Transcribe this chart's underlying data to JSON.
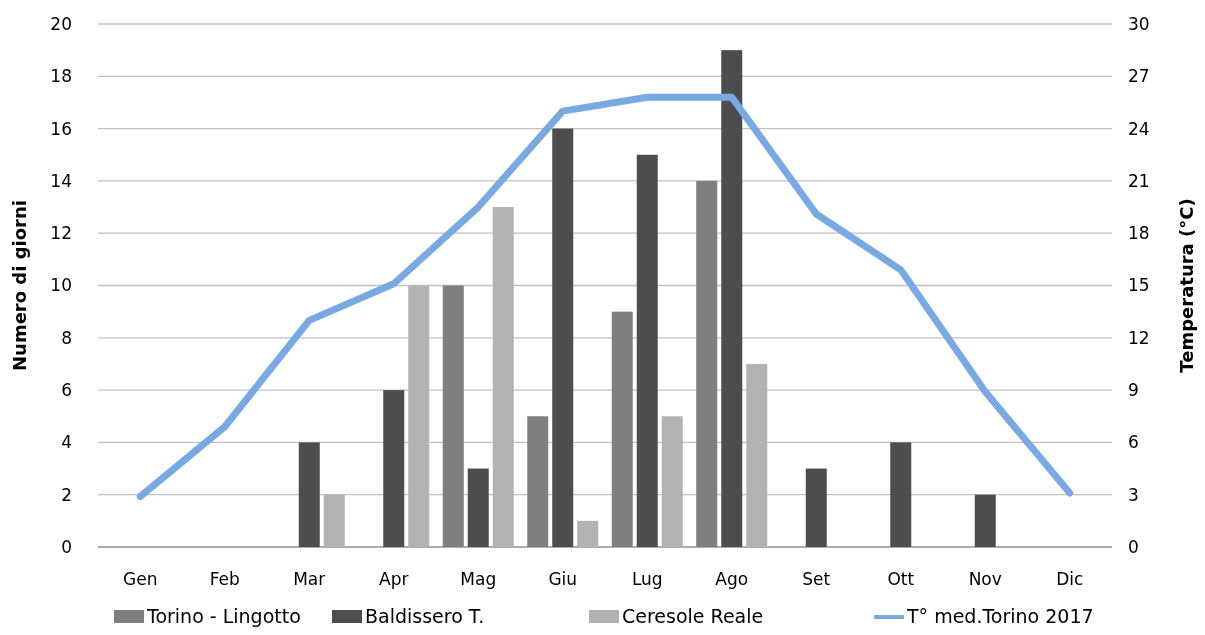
{
  "chart_data": {
    "type": "bar",
    "ylabel": "Numero di giorni",
    "y2label": "Temperatura  (°C)",
    "categories": [
      "Gen",
      "Feb",
      "Mar",
      "Apr",
      "Mag",
      "Giu",
      "Lug",
      "Ago",
      "Set",
      "Ott",
      "Nov",
      "Dic"
    ],
    "series": [
      {
        "name": "Torino - Lingotto",
        "color": "#7f7f7f",
        "values": [
          0,
          0,
          0,
          0,
          10,
          5,
          9,
          14,
          0,
          0,
          0,
          0
        ]
      },
      {
        "name": "Baldissero T.",
        "color": "#4d4d4d",
        "values": [
          0,
          0,
          4,
          6,
          3,
          16,
          15,
          19,
          3,
          4,
          2,
          0
        ]
      },
      {
        "name": "Ceresole Reale",
        "color": "#b2b2b2",
        "values": [
          0,
          0,
          2,
          10,
          13,
          1,
          5,
          7,
          0,
          0,
          0,
          0
        ]
      },
      {
        "name": "T°  med.Torino 2017",
        "type": "line",
        "axis": "y2",
        "color": "#78a9e3",
        "values": [
          2.9,
          6.9,
          13.0,
          15.1,
          19.5,
          25.0,
          25.8,
          25.8,
          19.1,
          15.9,
          8.9,
          3.1
        ]
      }
    ],
    "ylim": [
      0,
      20
    ],
    "yticks": [
      0,
      2,
      4,
      6,
      8,
      10,
      12,
      14,
      16,
      18,
      20
    ],
    "y2lim": [
      0,
      30
    ],
    "y2ticks": [
      0,
      3,
      6,
      9,
      12,
      15,
      18,
      21,
      24,
      27,
      30
    ],
    "grid": "y",
    "legend": "bottom",
    "marker": "none",
    "line_style": "solid"
  }
}
